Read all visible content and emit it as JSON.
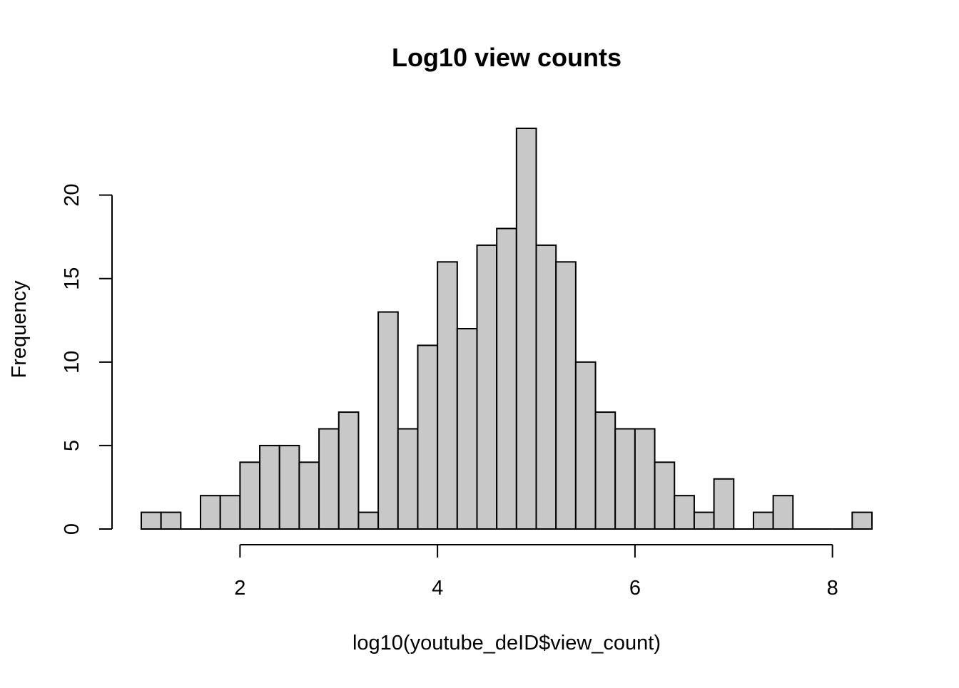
{
  "chart_data": {
    "type": "bar",
    "title": "Log10 view counts",
    "xlabel": "log10(youtube_deID$view_count)",
    "ylabel": "Frequency",
    "bin_width": 0.2,
    "bins": [
      {
        "x0": 1.0,
        "x1": 1.2,
        "count": 1
      },
      {
        "x0": 1.2,
        "x1": 1.4,
        "count": 1
      },
      {
        "x0": 1.4,
        "x1": 1.6,
        "count": 0
      },
      {
        "x0": 1.6,
        "x1": 1.8,
        "count": 2
      },
      {
        "x0": 1.8,
        "x1": 2.0,
        "count": 2
      },
      {
        "x0": 2.0,
        "x1": 2.2,
        "count": 4
      },
      {
        "x0": 2.2,
        "x1": 2.4,
        "count": 5
      },
      {
        "x0": 2.4,
        "x1": 2.6,
        "count": 5
      },
      {
        "x0": 2.6,
        "x1": 2.8,
        "count": 4
      },
      {
        "x0": 2.8,
        "x1": 3.0,
        "count": 6
      },
      {
        "x0": 3.0,
        "x1": 3.2,
        "count": 7
      },
      {
        "x0": 3.2,
        "x1": 3.4,
        "count": 1
      },
      {
        "x0": 3.4,
        "x1": 3.6,
        "count": 13
      },
      {
        "x0": 3.6,
        "x1": 3.8,
        "count": 6
      },
      {
        "x0": 3.8,
        "x1": 4.0,
        "count": 11
      },
      {
        "x0": 4.0,
        "x1": 4.2,
        "count": 16
      },
      {
        "x0": 4.2,
        "x1": 4.4,
        "count": 12
      },
      {
        "x0": 4.4,
        "x1": 4.6,
        "count": 17
      },
      {
        "x0": 4.6,
        "x1": 4.8,
        "count": 18
      },
      {
        "x0": 4.8,
        "x1": 5.0,
        "count": 24
      },
      {
        "x0": 5.0,
        "x1": 5.2,
        "count": 17
      },
      {
        "x0": 5.2,
        "x1": 5.4,
        "count": 16
      },
      {
        "x0": 5.4,
        "x1": 5.6,
        "count": 10
      },
      {
        "x0": 5.6,
        "x1": 5.8,
        "count": 7
      },
      {
        "x0": 5.8,
        "x1": 6.0,
        "count": 6
      },
      {
        "x0": 6.0,
        "x1": 6.2,
        "count": 6
      },
      {
        "x0": 6.2,
        "x1": 6.4,
        "count": 4
      },
      {
        "x0": 6.4,
        "x1": 6.6,
        "count": 2
      },
      {
        "x0": 6.6,
        "x1": 6.8,
        "count": 1
      },
      {
        "x0": 6.8,
        "x1": 7.0,
        "count": 3
      },
      {
        "x0": 7.0,
        "x1": 7.2,
        "count": 0
      },
      {
        "x0": 7.2,
        "x1": 7.4,
        "count": 1
      },
      {
        "x0": 7.4,
        "x1": 7.6,
        "count": 2
      },
      {
        "x0": 7.6,
        "x1": 7.8,
        "count": 0
      },
      {
        "x0": 7.8,
        "x1": 8.0,
        "count": 0
      },
      {
        "x0": 8.0,
        "x1": 8.2,
        "count": 0
      },
      {
        "x0": 8.2,
        "x1": 8.4,
        "count": 1
      }
    ],
    "x_ticks": [
      2,
      4,
      6,
      8
    ],
    "x_tick_labels": [
      "2",
      "4",
      "6",
      "8"
    ],
    "y_ticks": [
      0,
      5,
      10,
      15,
      20
    ],
    "y_tick_labels": [
      "0",
      "5",
      "10",
      "15",
      "20"
    ],
    "xlim": [
      0.7,
      8.6
    ],
    "ylim": [
      0,
      24.5
    ],
    "bar_color": "#c8c8c8",
    "edge_color": "#000000",
    "grid": false,
    "legend": "none"
  }
}
